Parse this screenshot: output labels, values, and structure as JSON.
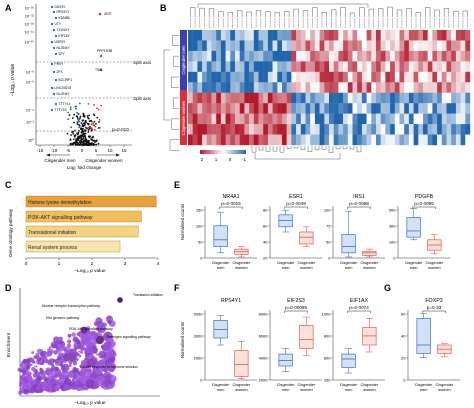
{
  "panels": {
    "A": {
      "letter": "A",
      "y_unit": "–Log₁₀ p value",
      "x_unit": "Log₂ fold change",
      "y_ticks": [
        "10⁻²⁶",
        "10⁻²²",
        "10⁻¹⁸",
        "10⁻¹⁴",
        "10⁻¹⁰",
        "10⁻⁸",
        "10⁻⁶",
        "10⁻⁴",
        "10⁻²",
        "10⁰"
      ],
      "x_ticks": [
        "-15",
        "-10",
        "-5",
        "0",
        "5",
        "10",
        "15"
      ],
      "split_label_1": "Split axis",
      "split_label_2": "Split axis",
      "threshold_label": "p=0·010",
      "dir_left_1": "Cisgender men",
      "dir_right_1": "Cisgender women",
      "genes_left": [
        "DDX3Y",
        "RPS4Y1",
        "KDM5D",
        "UTY",
        "TXLNGY",
        "EIF1AY",
        "USP9Y",
        "NLGN4Y",
        "ZFY",
        "PRKY",
        "ZFX",
        "BCORP1",
        "LINC00278",
        "NLGN4Y",
        "TTTY14",
        "TTTY15"
      ],
      "gene_right_1": "XIST",
      "gene_right_2": "PPP1R3B",
      "gene_right_3": "TSIX"
    },
    "B": {
      "letter": "B",
      "group_top": "Cisgender men",
      "group_bottom": "Cisgender women",
      "legend_ticks": [
        "2",
        "1",
        "0",
        "-1"
      ],
      "n_cols": 60,
      "n_rows": 11
    },
    "C": {
      "letter": "C",
      "y_label": "Gene ontology pathway",
      "x_label": "–Log₁₀ p value",
      "x_ticks": [
        "0",
        "1",
        "2",
        "3",
        "4"
      ],
      "chart_data": {
        "type": "bar",
        "orientation": "horizontal",
        "categories": [
          "Histone lysine demethylation",
          "PI3K-AKT signalling pathway",
          "Translational initiation",
          "Renal system process"
        ],
        "values": [
          3.95,
          3.5,
          3.4,
          2.85
        ],
        "xlim": [
          0,
          4
        ],
        "colors": [
          "#e8a23c",
          "#f1bf5a",
          "#f3d483",
          "#f6e6a9"
        ]
      }
    },
    "D": {
      "letter": "D",
      "y_label": "Enrichment",
      "x_label": "–Log₁₀ p value",
      "annotations": [
        "Nuclear receptor transcription pathway",
        "Translation initiation",
        "Eflα genomic pathway",
        "PI3K-AKT signalling pathway",
        "Oestrogen signalling pathway",
        "Cellular response to hormone stimulus"
      ]
    },
    "E": {
      "letter": "E",
      "y_label": "Normalised counts",
      "xcat_left": "Cisgender men",
      "xcat_right": "Cisgender women",
      "plots": [
        {
          "gene": "NR4A1",
          "p": "p=0·0015",
          "ymax": "150",
          "ymid": "100",
          "ymid2": "50",
          "ymin": "0"
        },
        {
          "gene": "ESR1",
          "p": "p=0·0049",
          "ymax": "80",
          "ymid": "60",
          "ymid2": "40",
          "ymin": "20"
        },
        {
          "gene": "IRS1",
          "p": "p=0·0068",
          "ymax": "100",
          "ymid": "75",
          "ymid2": "50",
          "ymin": "0"
        },
        {
          "gene": "PDGFB",
          "p": "p=0·0095",
          "ymax": "500",
          "ymid": "300",
          "ymid2": "100",
          "ymin": "0"
        }
      ]
    },
    "F": {
      "letter": "F",
      "y_label": "Normalised counts",
      "xcat_left": "Cisgender men",
      "xcat_right": "Cisgender women",
      "plots": [
        {
          "gene": "RPS4Y1",
          "p": "",
          "ymax": "5000",
          "ymid": "3000",
          "ymid2": "2000",
          "ymin": "0"
        },
        {
          "gene": "EIF2S3",
          "p": "p=0·00086",
          "ymax": "8000",
          "ymid": "6000",
          "ymid2": "4000",
          "ymin": "2000"
        },
        {
          "gene": "EIF1AX",
          "p": "p=0·0074",
          "ymax": "1000",
          "ymid": "800",
          "ymid2": "600",
          "ymin": "200"
        }
      ]
    },
    "G": {
      "letter": "G",
      "plot": {
        "gene": "FOXP3",
        "p": "p=0·33",
        "ymax": "60",
        "ymid": "40",
        "ymid2": "20",
        "ymin": "0"
      }
    }
  },
  "colors": {
    "men": "#3b6fc3",
    "women": "#e05a4b",
    "heat_pos": "#c0272d",
    "heat_neg": "#2c6bb0",
    "heat_mid": "#ffffff"
  }
}
